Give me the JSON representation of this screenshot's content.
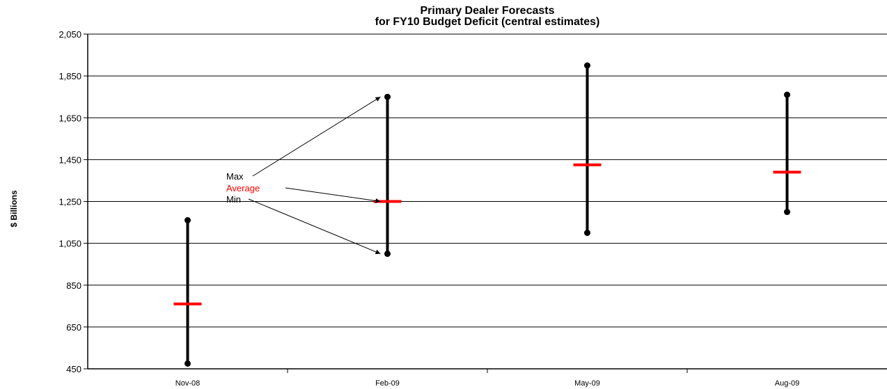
{
  "chart_data": {
    "type": "hi-lo-avg",
    "title_lines": [
      "Primary Dealer Forecasts",
      "for FY10 Budget Deficit (central estimates)"
    ],
    "ylabel": "$ Billions",
    "xlabel": "",
    "ylim": [
      450,
      2050
    ],
    "yticks": [
      450,
      650,
      850,
      1050,
      1250,
      1450,
      1650,
      1850,
      2050
    ],
    "categories": [
      "Nov-08",
      "Feb-09",
      "May-09",
      "Aug-09"
    ],
    "max": [
      1160,
      1750,
      1900,
      1760
    ],
    "min": [
      475,
      1000,
      1100,
      1200
    ],
    "average": [
      760,
      1250,
      1425,
      1390
    ],
    "grid": true,
    "colors": {
      "range": "#000000",
      "average": "#ff0000"
    },
    "annotations": [
      {
        "text": "Max",
        "color": "#000000",
        "target": {
          "category": 1,
          "series": "max"
        }
      },
      {
        "text": "Average",
        "color": "#ff0000",
        "target": {
          "category": 1,
          "series": "average"
        }
      },
      {
        "text": "Min",
        "color": "#000000",
        "target": {
          "category": 1,
          "series": "min"
        }
      }
    ]
  }
}
